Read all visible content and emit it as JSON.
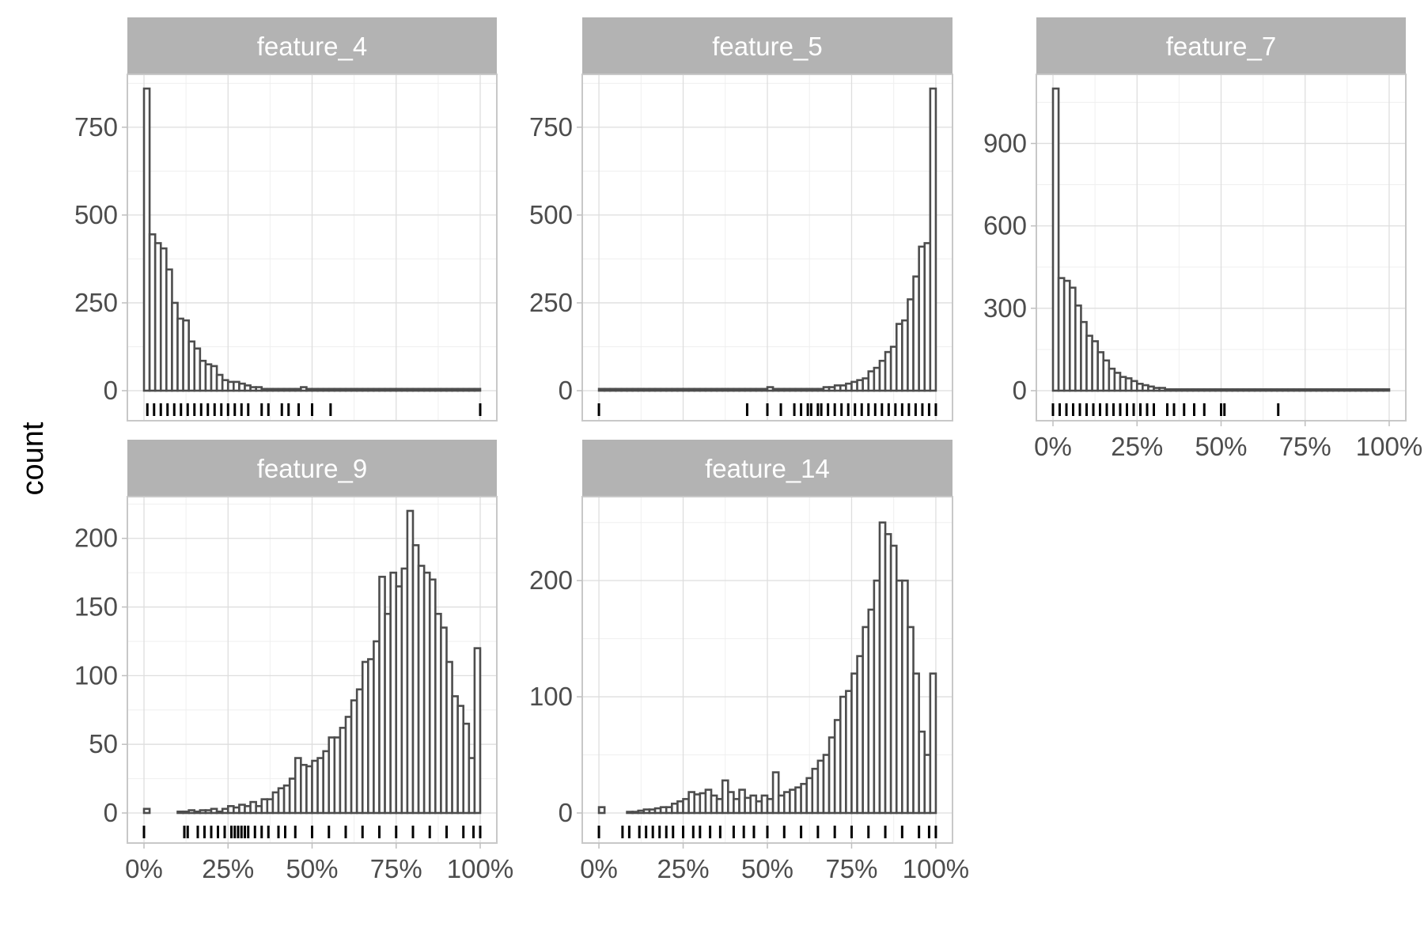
{
  "ylabel": "count",
  "chart_data": [
    {
      "type": "bar",
      "title": "feature_4",
      "xlim": [
        0,
        1
      ],
      "ylim": [
        0,
        860
      ],
      "yticks": [
        0,
        250,
        500,
        750
      ],
      "ytick_labels": [
        "0",
        "250",
        "500",
        "750"
      ],
      "xticks": [
        0,
        0.25,
        0.5,
        0.75,
        1
      ],
      "xtick_labels": [],
      "bins": 60,
      "values": [
        860,
        445,
        420,
        405,
        345,
        250,
        205,
        200,
        140,
        120,
        85,
        75,
        70,
        45,
        30,
        25,
        25,
        20,
        15,
        10,
        10,
        5,
        5,
        5,
        5,
        5,
        5,
        5,
        10,
        5,
        5,
        5,
        5,
        5,
        5,
        5,
        5,
        5,
        5,
        5,
        5,
        5,
        5,
        5,
        5,
        5,
        5,
        5,
        5,
        5,
        5,
        5,
        5,
        5,
        5,
        5,
        5,
        5,
        5,
        5
      ],
      "rug": [
        0.01,
        0.03,
        0.05,
        0.07,
        0.09,
        0.11,
        0.13,
        0.15,
        0.17,
        0.19,
        0.21,
        0.23,
        0.25,
        0.27,
        0.29,
        0.31,
        0.35,
        0.37,
        0.41,
        0.43,
        0.46,
        0.5,
        0.555,
        1.0
      ]
    },
    {
      "type": "bar",
      "title": "feature_5",
      "xlim": [
        0,
        1
      ],
      "ylim": [
        0,
        860
      ],
      "yticks": [
        0,
        250,
        500,
        750
      ],
      "ytick_labels": [
        "0",
        "250",
        "500",
        "750"
      ],
      "xticks": [
        0,
        0.25,
        0.5,
        0.75,
        1
      ],
      "xtick_labels": [],
      "bins": 60,
      "values": [
        5,
        5,
        5,
        5,
        5,
        5,
        5,
        5,
        5,
        5,
        5,
        5,
        5,
        5,
        5,
        5,
        5,
        5,
        5,
        5,
        5,
        5,
        5,
        5,
        5,
        5,
        5,
        5,
        5,
        5,
        10,
        5,
        5,
        5,
        5,
        5,
        5,
        5,
        5,
        5,
        10,
        10,
        15,
        15,
        20,
        25,
        30,
        35,
        55,
        65,
        85,
        110,
        125,
        190,
        200,
        260,
        325,
        410,
        420,
        860
      ],
      "rug": [
        0.0,
        0.44,
        0.5,
        0.54,
        0.58,
        0.6,
        0.62,
        0.63,
        0.65,
        0.66,
        0.68,
        0.7,
        0.72,
        0.74,
        0.76,
        0.78,
        0.8,
        0.82,
        0.84,
        0.86,
        0.88,
        0.9,
        0.92,
        0.94,
        0.96,
        0.98,
        1.0
      ]
    },
    {
      "type": "bar",
      "title": "feature_7",
      "xlim": [
        0,
        1
      ],
      "ylim": [
        0,
        1100
      ],
      "yticks": [
        0,
        300,
        600,
        900
      ],
      "ytick_labels": [
        "0",
        "300",
        "600",
        "900"
      ],
      "xticks": [
        0,
        0.25,
        0.5,
        0.75,
        1
      ],
      "xtick_labels": [
        "0%",
        "25%",
        "50%",
        "75%",
        "100%"
      ],
      "bins": 60,
      "values": [
        1100,
        410,
        400,
        375,
        310,
        250,
        200,
        180,
        140,
        110,
        80,
        65,
        50,
        45,
        35,
        25,
        20,
        15,
        10,
        10,
        5,
        5,
        5,
        5,
        5,
        5,
        5,
        5,
        5,
        5,
        5,
        5,
        5,
        5,
        5,
        5,
        5,
        5,
        5,
        5,
        5,
        5,
        5,
        5,
        5,
        5,
        5,
        5,
        5,
        5,
        5,
        5,
        5,
        5,
        5,
        5,
        5,
        5,
        5,
        5
      ],
      "rug": [
        0.0,
        0.02,
        0.04,
        0.06,
        0.08,
        0.1,
        0.12,
        0.14,
        0.16,
        0.18,
        0.2,
        0.22,
        0.24,
        0.26,
        0.28,
        0.3,
        0.34,
        0.36,
        0.39,
        0.42,
        0.45,
        0.5,
        0.51,
        0.67
      ]
    },
    {
      "type": "bar",
      "title": "feature_9",
      "xlim": [
        0,
        1
      ],
      "ylim": [
        0,
        220
      ],
      "yticks": [
        0,
        50,
        100,
        150,
        200
      ],
      "ytick_labels": [
        "0",
        "50",
        "100",
        "150",
        "200"
      ],
      "xticks": [
        0,
        0.25,
        0.5,
        0.75,
        1
      ],
      "xtick_labels": [
        "0%",
        "25%",
        "50%",
        "75%",
        "100%"
      ],
      "bins": 60,
      "values": [
        3,
        0,
        0,
        0,
        0,
        0,
        1,
        1,
        2,
        1,
        2,
        2,
        3,
        1,
        3,
        5,
        4,
        6,
        5,
        8,
        5,
        10,
        10,
        15,
        18,
        20,
        25,
        40,
        35,
        34,
        38,
        40,
        45,
        55,
        55,
        62,
        70,
        82,
        90,
        110,
        112,
        125,
        172,
        145,
        175,
        165,
        178,
        220,
        195,
        180,
        175,
        170,
        145,
        135,
        110,
        85,
        78,
        65,
        40,
        120
      ],
      "rug": [
        0.0,
        0.12,
        0.13,
        0.16,
        0.18,
        0.2,
        0.22,
        0.24,
        0.26,
        0.27,
        0.28,
        0.29,
        0.3,
        0.31,
        0.33,
        0.35,
        0.37,
        0.4,
        0.42,
        0.45,
        0.5,
        0.55,
        0.6,
        0.65,
        0.7,
        0.75,
        0.8,
        0.85,
        0.9,
        0.95,
        0.98,
        1.0
      ]
    },
    {
      "type": "bar",
      "title": "feature_14",
      "xlim": [
        0,
        1
      ],
      "ylim": [
        0,
        260
      ],
      "yticks": [
        0,
        100,
        200
      ],
      "ytick_labels": [
        "0",
        "100",
        "200"
      ],
      "xticks": [
        0,
        0.25,
        0.5,
        0.75,
        1
      ],
      "xtick_labels": [
        "0%",
        "25%",
        "50%",
        "75%",
        "100%"
      ],
      "bins": 60,
      "values": [
        5,
        0,
        0,
        0,
        0,
        1,
        1,
        2,
        3,
        3,
        4,
        5,
        5,
        8,
        10,
        12,
        18,
        16,
        17,
        20,
        15,
        12,
        28,
        18,
        12,
        20,
        13,
        15,
        10,
        15,
        12,
        35,
        15,
        18,
        20,
        22,
        25,
        30,
        38,
        45,
        50,
        65,
        80,
        100,
        105,
        120,
        135,
        160,
        175,
        200,
        250,
        240,
        230,
        200,
        200,
        160,
        120,
        70,
        50,
        120
      ],
      "rug": [
        0.0,
        0.07,
        0.09,
        0.12,
        0.14,
        0.16,
        0.18,
        0.2,
        0.22,
        0.25,
        0.28,
        0.3,
        0.33,
        0.36,
        0.4,
        0.43,
        0.46,
        0.5,
        0.55,
        0.6,
        0.65,
        0.7,
        0.75,
        0.8,
        0.85,
        0.9,
        0.95,
        0.98,
        1.0
      ]
    }
  ]
}
